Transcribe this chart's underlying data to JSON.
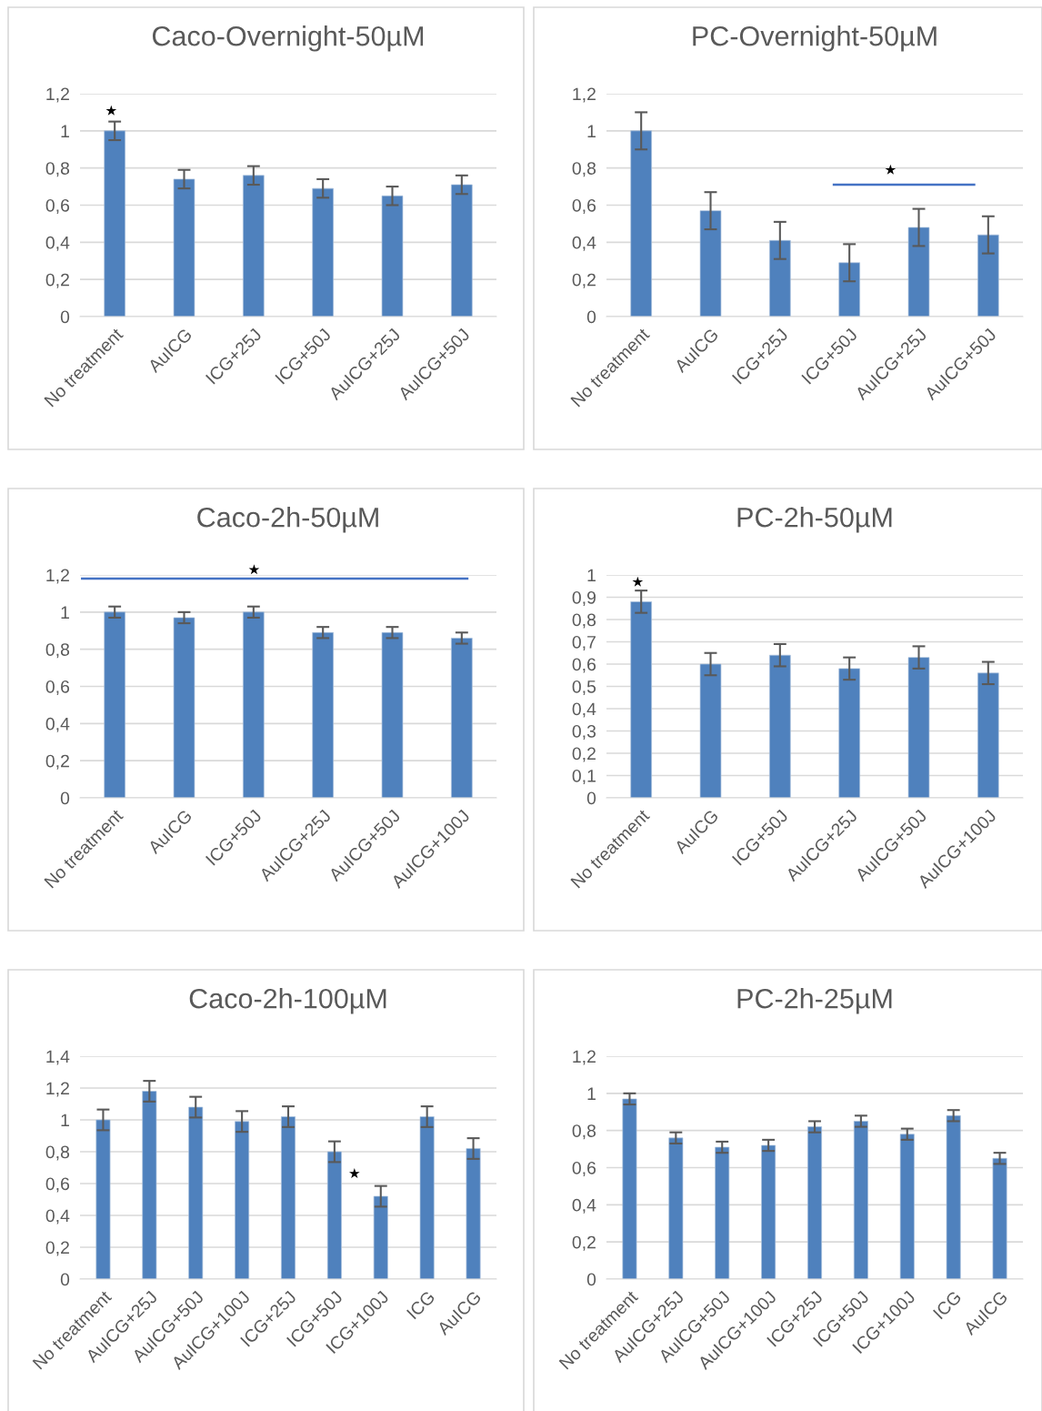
{
  "chart_data": [
    {
      "type": "bar",
      "title": "Caco-Overnight-50µM",
      "categories": [
        "No treatment",
        "AuICG",
        "ICG+25J",
        "ICG+50J",
        "AuICG+25J",
        "AuICG+50J"
      ],
      "values": [
        1.0,
        0.74,
        0.76,
        0.69,
        0.65,
        0.71
      ],
      "errors": [
        0.05,
        0.05,
        0.05,
        0.05,
        0.05,
        0.05
      ],
      "color": "#4f81bd",
      "ylim": [
        0,
        1.2
      ],
      "yticks": [
        0,
        {
          "value": 0.2,
          "label": "0,2"
        },
        {
          "value": 0.4,
          "label": "0,4"
        },
        {
          "value": 0.6,
          "label": "0,6"
        },
        {
          "value": 0.8,
          "label": "0,8"
        },
        1,
        {
          "value": 1.2,
          "label": "1,2"
        }
      ],
      "grid": "y",
      "annotations": [
        "★"
      ]
    },
    {
      "type": "bar",
      "title": "PC-Overnight-50µM",
      "categories": [
        "No treatment",
        "AuICG",
        "ICG+25J",
        "ICG+50J",
        "AuICG+25J",
        "AuICG+50J"
      ],
      "values": [
        1.0,
        0.57,
        0.41,
        0.29,
        0.48,
        0.44
      ],
      "errors": [
        0.1,
        0.1,
        0.1,
        0.1,
        0.1,
        0.1
      ],
      "color": "#4f81bd",
      "ylim": [
        0,
        1.2
      ],
      "yticks": [
        0,
        {
          "value": 0.2,
          "label": "0,2"
        },
        {
          "value": 0.4,
          "label": "0,4"
        },
        {
          "value": 0.6,
          "label": "0,6"
        },
        {
          "value": 0.8,
          "label": "0,8"
        },
        1,
        {
          "value": 1.2,
          "label": "1,2"
        }
      ],
      "grid": "y",
      "annotations": [
        "★"
      ]
    },
    {
      "type": "bar",
      "title": "Caco-2h-50µM",
      "categories": [
        "No treatment",
        "AuICG",
        "ICG+50J",
        "AuICG+25J",
        "AuICG+50J",
        "AuICG+100J"
      ],
      "values": [
        1.0,
        0.97,
        1.0,
        0.89,
        0.89,
        0.86
      ],
      "ref_lines": [
        {
          "axis": "y",
          "value": 1.18,
          "color": "#4472c4"
        }
      ],
      "errors": [
        0.03,
        0.03,
        0.03,
        0.03,
        0.03,
        0.03
      ],
      "color": "#4f81bd",
      "ylim": [
        0,
        1.2
      ],
      "yticks": [
        0,
        {
          "value": 0.2,
          "label": "0,2"
        },
        {
          "value": 0.4,
          "label": "0,4"
        },
        {
          "value": 0.6,
          "label": "0,6"
        },
        {
          "value": 0.8,
          "label": "0,8"
        },
        1,
        {
          "value": 1.2,
          "label": "1,2"
        }
      ],
      "grid": "y",
      "annotations": [
        "★"
      ]
    },
    {
      "type": "bar",
      "title": "PC-2h-50µM",
      "categories": [
        "No treatment",
        "AuICG",
        "ICG+50J",
        "AuICG+25J",
        "AuICG+50J",
        "AuICG+100J"
      ],
      "values": [
        0.88,
        0.6,
        0.64,
        0.58,
        0.63,
        0.56
      ],
      "errors": [
        0.05,
        0.05,
        0.05,
        0.05,
        0.05,
        0.05
      ],
      "color": "#4f81bd",
      "ylim": [
        0,
        1
      ],
      "yticks": [
        0,
        {
          "value": 0.1,
          "label": "0,1"
        },
        {
          "value": 0.2,
          "label": "0,2"
        },
        {
          "value": 0.3,
          "label": "0,3"
        },
        {
          "value": 0.4,
          "label": "0,4"
        },
        {
          "value": 0.5,
          "label": "0,5"
        },
        {
          "value": 0.6,
          "label": "0,6"
        },
        {
          "value": 0.7,
          "label": "0,7"
        },
        {
          "value": 0.8,
          "label": "0,8"
        },
        {
          "value": 0.9,
          "label": "0,9"
        },
        1
      ],
      "grid": "y",
      "annotations": [
        "★"
      ]
    },
    {
      "type": "bar",
      "title": "Caco-2h-100µM",
      "categories": [
        "No treatment",
        "AuICG+25J",
        "AuICG+50J",
        "AuICG+100J",
        "ICG+25J",
        "ICG+50J",
        "ICG+100J",
        "ICG",
        "AuICG"
      ],
      "values": [
        1.0,
        1.18,
        1.08,
        0.99,
        1.02,
        0.8,
        0.52,
        1.02,
        0.82
      ],
      "errors": [
        0.065,
        0.065,
        0.065,
        0.065,
        0.065,
        0.065,
        0.065,
        0.065,
        0.065
      ],
      "color": "#4f81bd",
      "ylim": [
        0,
        1.4
      ],
      "yticks": [
        0,
        {
          "value": 0.2,
          "label": "0,2"
        },
        {
          "value": 0.4,
          "label": "0,4"
        },
        {
          "value": 0.6,
          "label": "0,6"
        },
        {
          "value": 0.8,
          "label": "0,8"
        },
        1,
        {
          "value": 1.2,
          "label": "1,2"
        },
        {
          "value": 1.4,
          "label": "1,4"
        }
      ],
      "grid": "y",
      "annotations": [
        "★"
      ]
    },
    {
      "type": "bar",
      "title": "PC-2h-25µM",
      "categories": [
        "No treatment",
        "AuICG+25J",
        "AuICG+50J",
        "AuICG+100J",
        "ICG+25J",
        "ICG+50J",
        "ICG+100J",
        "ICG",
        "AuICG"
      ],
      "values": [
        0.97,
        0.76,
        0.71,
        0.72,
        0.82,
        0.85,
        0.78,
        0.88,
        0.65
      ],
      "errors": [
        0.03,
        0.03,
        0.03,
        0.03,
        0.03,
        0.03,
        0.03,
        0.03,
        0.03
      ],
      "color": "#4f81bd",
      "ylim": [
        0,
        1.2
      ],
      "yticks": [
        0,
        {
          "value": 0.2,
          "label": "0,2"
        },
        {
          "value": 0.4,
          "label": "0,4"
        },
        {
          "value": 0.6,
          "label": "0,6"
        },
        {
          "value": 0.8,
          "label": "0,8"
        },
        1,
        {
          "value": 1.2,
          "label": "1,2"
        }
      ],
      "grid": "y"
    }
  ]
}
